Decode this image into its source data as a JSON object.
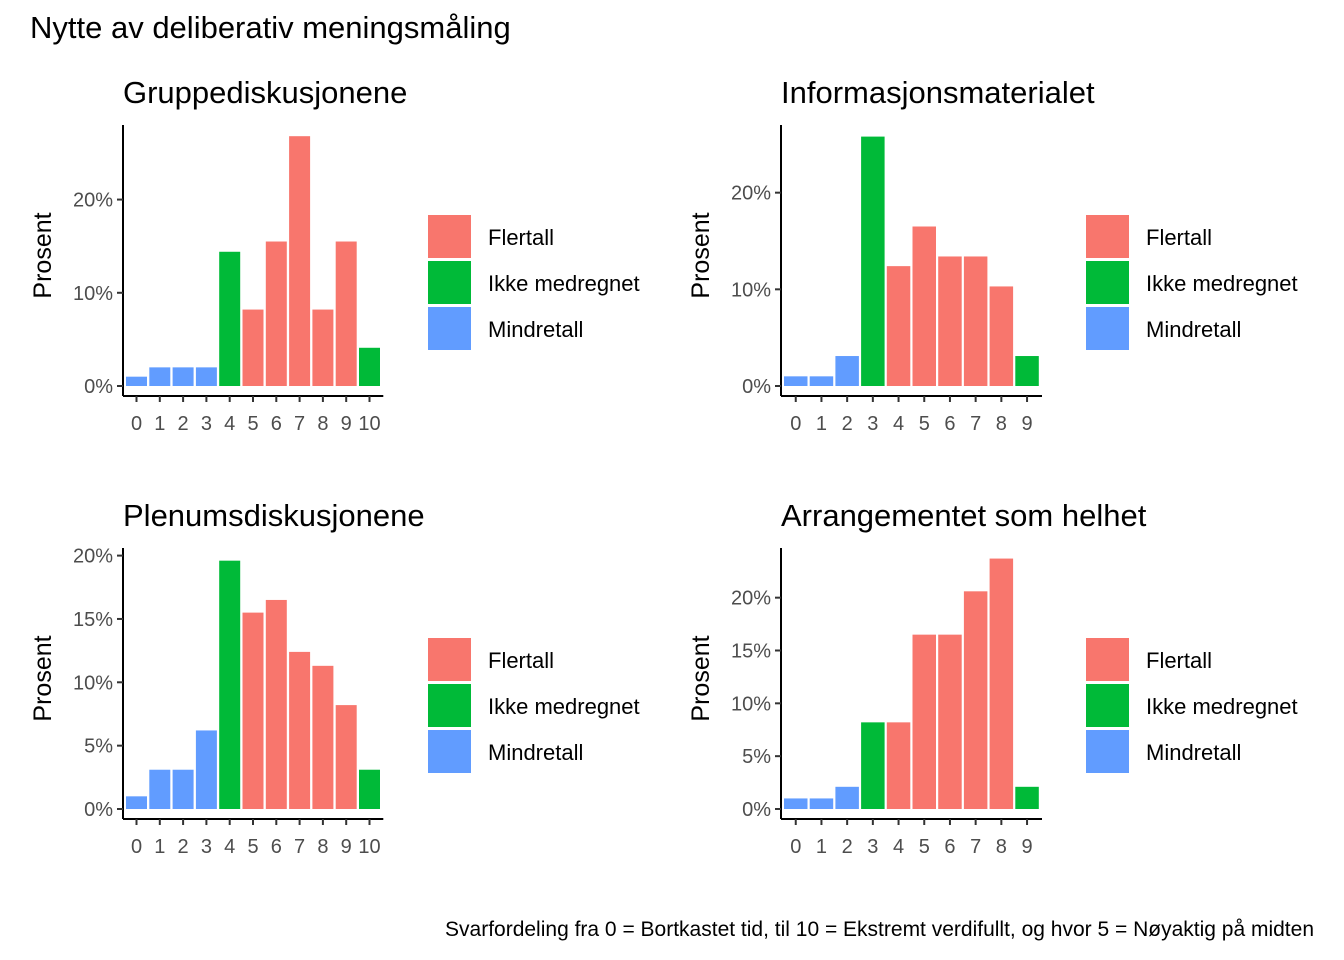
{
  "title": "Nytte av deliberativ meningsmåling",
  "caption": "Svarfordeling fra 0 = Bortkastet tid, til 10 = Ekstremt verdifullt, og hvor 5 = Nøyaktig på midten",
  "colors": {
    "Flertall": "#F8766D",
    "Ikke medregnet": "#00BA38",
    "Mindretall": "#619CFF"
  },
  "legend": [
    "Flertall",
    "Ikke medregnet",
    "Mindretall"
  ],
  "chart_data": [
    {
      "type": "bar",
      "title": "Gruppediskusjonene",
      "ylabel": "Prosent",
      "ylim": [
        0,
        28
      ],
      "yticks": [
        0,
        10,
        20
      ],
      "ytick_labels": [
        "0%",
        "10%",
        "20%"
      ],
      "categories": [
        "0",
        "1",
        "2",
        "3",
        "4",
        "5",
        "6",
        "7",
        "8",
        "9",
        "10"
      ],
      "values": [
        1,
        2,
        2,
        2,
        14.4,
        8.2,
        15.5,
        26.8,
        8.2,
        15.5,
        4.1
      ],
      "groups": [
        "Mindretall",
        "Mindretall",
        "Mindretall",
        "Mindretall",
        "Ikke medregnet",
        "Flertall",
        "Flertall",
        "Flertall",
        "Flertall",
        "Flertall",
        "Ikke medregnet"
      ]
    },
    {
      "type": "bar",
      "title": "Informasjonsmaterialet",
      "ylabel": "Prosent",
      "ylim": [
        0,
        27
      ],
      "yticks": [
        0,
        10,
        20
      ],
      "ytick_labels": [
        "0%",
        "10%",
        "20%"
      ],
      "categories": [
        "0",
        "1",
        "2",
        "3",
        "4",
        "5",
        "6",
        "7",
        "8",
        "9"
      ],
      "values": [
        1,
        1,
        3.1,
        25.8,
        12.4,
        16.5,
        13.4,
        13.4,
        10.3,
        3.1
      ],
      "groups": [
        "Mindretall",
        "Mindretall",
        "Mindretall",
        "Ikke medregnet",
        "Flertall",
        "Flertall",
        "Flertall",
        "Flertall",
        "Flertall",
        "Ikke medregnet"
      ]
    },
    {
      "type": "bar",
      "title": "Plenumsdiskusjonene",
      "ylabel": "Prosent",
      "ylim": [
        0,
        20.6
      ],
      "yticks": [
        0,
        5,
        10,
        15,
        20
      ],
      "ytick_labels": [
        "0%",
        "5%",
        "10%",
        "15%",
        "20%"
      ],
      "categories": [
        "0",
        "1",
        "2",
        "3",
        "4",
        "5",
        "6",
        "7",
        "8",
        "9",
        "10"
      ],
      "values": [
        1,
        3.1,
        3.1,
        6.2,
        19.6,
        15.5,
        16.5,
        12.4,
        11.3,
        8.2,
        3.1
      ],
      "groups": [
        "Mindretall",
        "Mindretall",
        "Mindretall",
        "Mindretall",
        "Ikke medregnet",
        "Flertall",
        "Flertall",
        "Flertall",
        "Flertall",
        "Flertall",
        "Ikke medregnet"
      ]
    },
    {
      "type": "bar",
      "title": "Arrangementet som helhet",
      "ylabel": "Prosent",
      "ylim": [
        0,
        24.7
      ],
      "yticks": [
        0,
        5,
        10,
        15,
        20
      ],
      "ytick_labels": [
        "0%",
        "5%",
        "10%",
        "15%",
        "20%"
      ],
      "categories": [
        "0",
        "1",
        "2",
        "3",
        "4",
        "5",
        "6",
        "7",
        "8",
        "9"
      ],
      "values": [
        1,
        1,
        2.1,
        8.2,
        8.2,
        16.5,
        16.5,
        20.6,
        23.7,
        2.1
      ],
      "groups": [
        "Mindretall",
        "Mindretall",
        "Mindretall",
        "Ikke medregnet",
        "Flertall",
        "Flertall",
        "Flertall",
        "Flertall",
        "Flertall",
        "Ikke medregnet"
      ]
    }
  ]
}
